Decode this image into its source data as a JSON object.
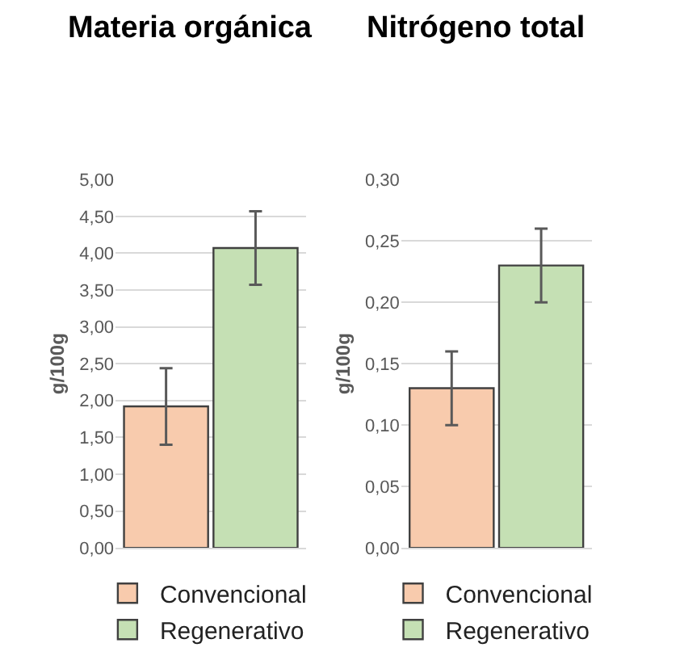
{
  "chart_data": [
    {
      "type": "bar",
      "title": "Materia orgánica",
      "ylabel": "g/100g",
      "categories": [
        null
      ],
      "ylim": [
        0,
        5
      ],
      "yticks": [
        {
          "value": 0,
          "label": "0,00"
        },
        {
          "value": 0.5,
          "label": "0,50"
        },
        {
          "value": 1,
          "label": "1,00"
        },
        {
          "value": 1.5,
          "label": "1,50"
        },
        {
          "value": 2,
          "label": "2,00"
        },
        {
          "value": 2.5,
          "label": "2,50"
        },
        {
          "value": 3,
          "label": "3,00"
        },
        {
          "value": 3.5,
          "label": "3,50"
        },
        {
          "value": 4,
          "label": "4,00"
        },
        {
          "value": 4.5,
          "label": "4,50"
        },
        {
          "value": 5,
          "label": "5,00"
        }
      ],
      "grid": "y",
      "legend": "bottom",
      "series": [
        {
          "name": "Convencional",
          "color": "#f8cbad",
          "values": [
            1.92
          ],
          "errors": [
            0.52
          ]
        },
        {
          "name": "Regenerativo",
          "color": "#c5e0b4",
          "values": [
            4.07
          ],
          "errors": [
            0.5
          ]
        }
      ]
    },
    {
      "type": "bar",
      "title": "Nitrógeno total",
      "ylabel": "g/100g",
      "categories": [
        null
      ],
      "ylim": [
        0,
        0.3
      ],
      "yticks": [
        {
          "value": 0,
          "label": "0,00"
        },
        {
          "value": 0.05,
          "label": "0,05"
        },
        {
          "value": 0.1,
          "label": "0,10"
        },
        {
          "value": 0.15,
          "label": "0,15"
        },
        {
          "value": 0.2,
          "label": "0,20"
        },
        {
          "value": 0.25,
          "label": "0,25"
        },
        {
          "value": 0.3,
          "label": "0,30"
        }
      ],
      "grid": "y",
      "legend": "bottom",
      "series": [
        {
          "name": "Convencional",
          "color": "#f8cbad",
          "values": [
            0.13
          ],
          "errors": [
            0.03
          ]
        },
        {
          "name": "Regenerativo",
          "color": "#c5e0b4",
          "values": [
            0.23
          ],
          "errors": [
            0.03
          ]
        }
      ]
    }
  ]
}
